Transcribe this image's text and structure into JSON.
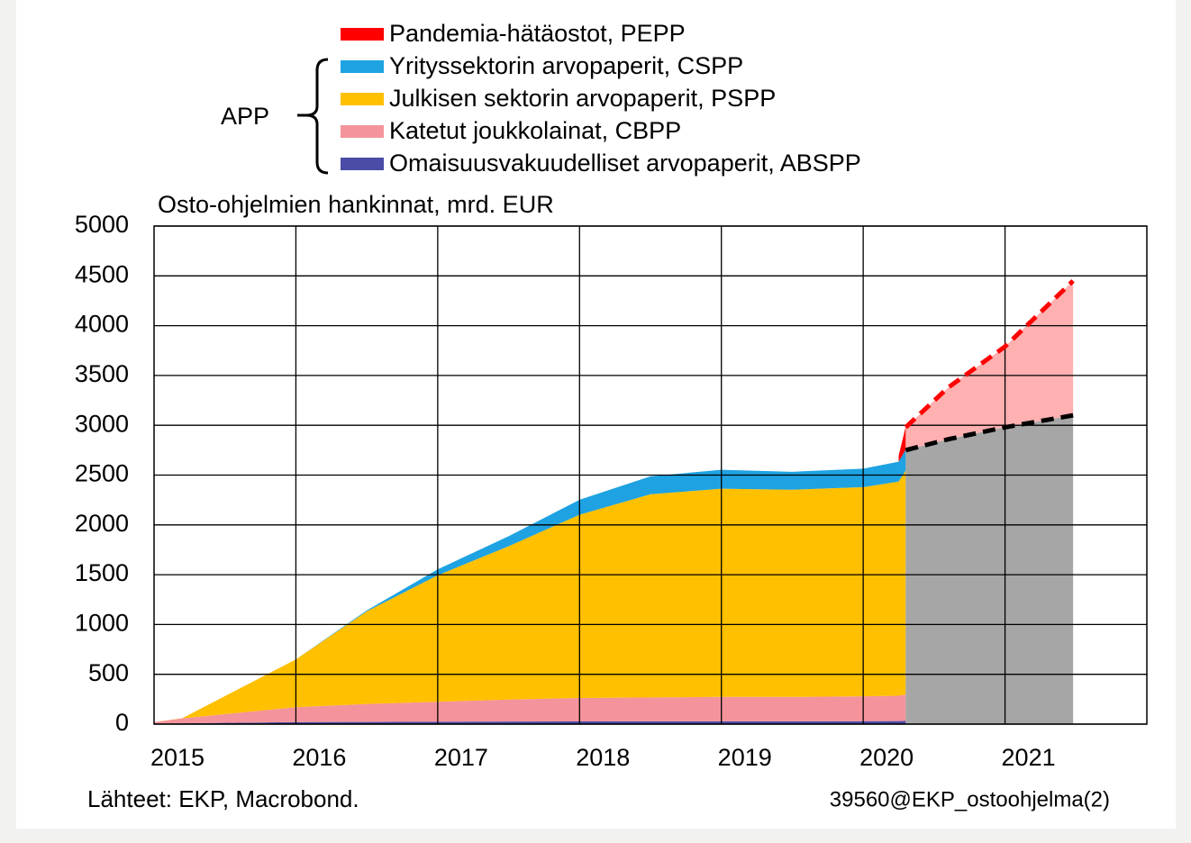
{
  "chart_data": {
    "type": "stacked_area",
    "title": "Osto-ohjelmien hankinnat, mrd. EUR",
    "bracket_label": "APP",
    "source": "Lähteet: EKP, Macrobond.",
    "code": "39560@EKP_ostoohjelma(2)",
    "xlim": [
      2015,
      2022
    ],
    "xticks": [
      2015,
      2016,
      2017,
      2018,
      2019,
      2020,
      2021
    ],
    "ylim": [
      0,
      5000
    ],
    "yticks": [
      0,
      500,
      1000,
      1500,
      2000,
      2500,
      3000,
      3500,
      4000,
      4500,
      5000
    ],
    "grid": true,
    "x": [
      2015.0,
      2015.2,
      2016.0,
      2016.5,
      2017.0,
      2017.5,
      2018.0,
      2018.5,
      2019.0,
      2019.5,
      2020.0,
      2020.25,
      2020.3
    ],
    "series": [
      {
        "name": "Pandemia-hätäostot, PEPP",
        "color": "#ff0000",
        "values": [
          null,
          null,
          null,
          null,
          null,
          null,
          null,
          null,
          null,
          null,
          null,
          60,
          230
        ]
      },
      {
        "name": "Yrityssektorin arvopaperit, CSPP",
        "color": "#1ea2e2",
        "values": [
          0,
          0,
          0,
          10,
          60,
          100,
          150,
          180,
          190,
          180,
          185,
          200,
          210
        ]
      },
      {
        "name": "Julkisen sektorin arvopaperit, PSPP",
        "color": "#ffc000",
        "values": [
          0,
          2,
          480,
          930,
          1270,
          1540,
          1840,
          2040,
          2090,
          2080,
          2100,
          2150,
          2250
        ]
      },
      {
        "name": "Katetut joukkolainat, CBPP",
        "color": "#f4939b",
        "values": [
          15,
          50,
          150,
          180,
          200,
          220,
          235,
          240,
          245,
          245,
          250,
          255,
          265
        ]
      },
      {
        "name": "Omaisuusvakuudelliset arvopaperit, ABSPP",
        "color": "#4b4ba8",
        "values": [
          5,
          8,
          20,
          22,
          24,
          26,
          27,
          28,
          28,
          28,
          29,
          30,
          32
        ]
      }
    ],
    "forecast": {
      "x": [
        2020.3,
        2020.6,
        2021.0,
        2021.48
      ],
      "app": [
        2750,
        2860,
        2980,
        3100
      ],
      "app_color": "#a6a6a6",
      "app_line_color": "#000000",
      "pepp": [
        230,
        520,
        810,
        1350
      ],
      "pepp_color": "#ffb0b0",
      "pepp_line_color": "#ff0000"
    }
  }
}
